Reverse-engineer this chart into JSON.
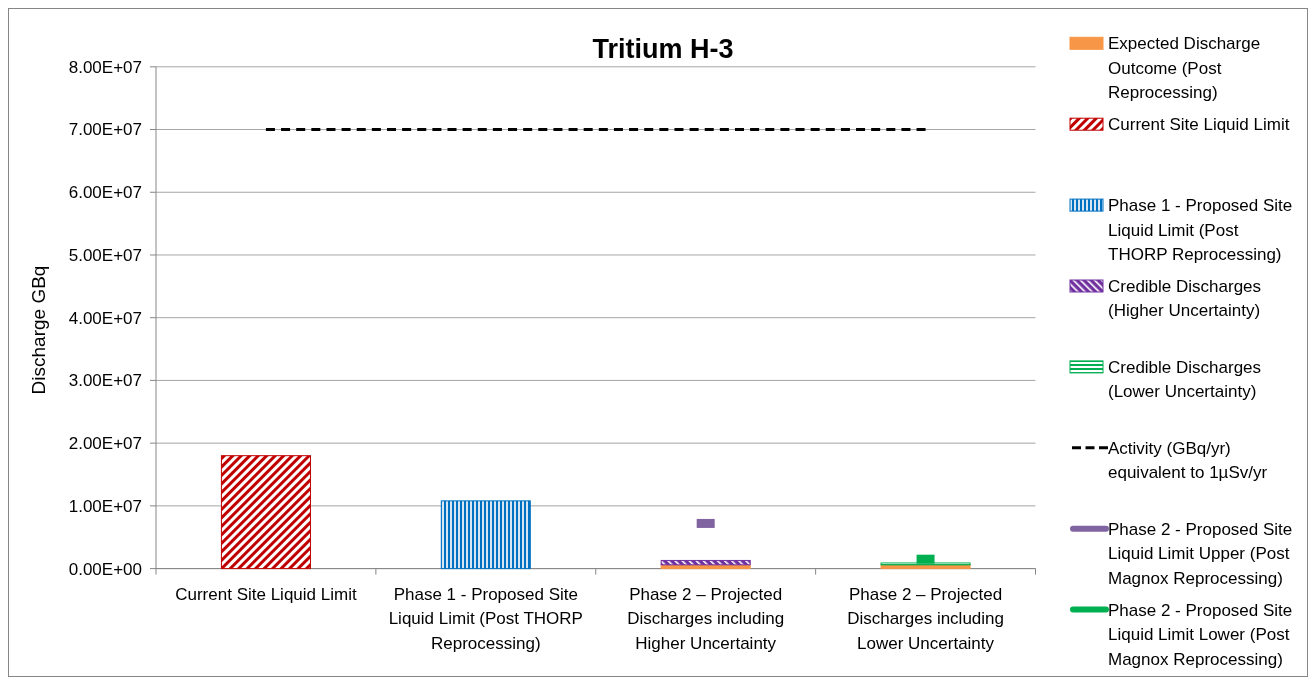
{
  "chart_data": {
    "type": "bar",
    "title": "Tritium H-3",
    "ylabel": "Discharge GBq",
    "categories": [
      "Current Site Liquid Limit",
      "Phase 1 - Proposed Site Liquid Limit (Post THORP Reprocessing)",
      "Phase 2 – Projected Discharges including Higher Uncertainty",
      "Phase 2 – Projected Discharges including Lower Uncertainty"
    ],
    "stacked": true,
    "series": [
      {
        "name": "Expected Discharge Outcome (Post Reprocessing)",
        "color": "#f79646",
        "values": [
          null,
          null,
          600000,
          600000
        ]
      },
      {
        "name": "Current Site Liquid Limit",
        "color": "#c00000",
        "values": [
          18000000,
          null,
          null,
          null
        ]
      },
      {
        "name": "Phase 1 - Proposed Site Liquid Limit (Post THORP Reprocessing)",
        "color": "#0070c0",
        "values": [
          null,
          10800000,
          null,
          null
        ]
      },
      {
        "name": "Credible Discharges (Higher Uncertainty)",
        "color": "#7030a0",
        "values": [
          null,
          null,
          700000,
          null
        ]
      },
      {
        "name": "Credible Discharges (Lower Uncertainty)",
        "color": "#00b050",
        "values": [
          null,
          null,
          null,
          300000
        ]
      },
      {
        "name": "Activity (GBq/yr) equivalent to 1µSv/yr",
        "type": "line",
        "line_style": "dashed",
        "color": "#000000",
        "values": [
          70000000,
          70000000,
          70000000,
          70000000
        ]
      },
      {
        "name": "Phase 2 - Proposed Site Liquid Limit Upper (Post Magnox Reprocessing)",
        "type": "line",
        "marker": "square",
        "color": "#8064a2",
        "values": [
          null,
          null,
          7200000,
          null
        ]
      },
      {
        "name": "Phase 2 - Proposed Site Liquid Limit Lower (Post Magnox Reprocessing)",
        "type": "line",
        "marker": "square",
        "color": "#00b050",
        "values": [
          null,
          null,
          null,
          1500000
        ]
      }
    ],
    "ylim": [
      0,
      80000000
    ],
    "yticks": [
      {
        "value": 0,
        "label": "0.00E+00"
      },
      {
        "value": 10000000,
        "label": "1.00E+07"
      },
      {
        "value": 20000000,
        "label": "2.00E+07"
      },
      {
        "value": 30000000,
        "label": "3.00E+07"
      },
      {
        "value": 40000000,
        "label": "4.00E+07"
      },
      {
        "value": 50000000,
        "label": "5.00E+07"
      },
      {
        "value": 60000000,
        "label": "6.00E+07"
      },
      {
        "value": 70000000,
        "label": "7.00E+07"
      },
      {
        "value": 80000000,
        "label": "8.00E+07"
      }
    ],
    "grid": "y",
    "legend": "right"
  }
}
